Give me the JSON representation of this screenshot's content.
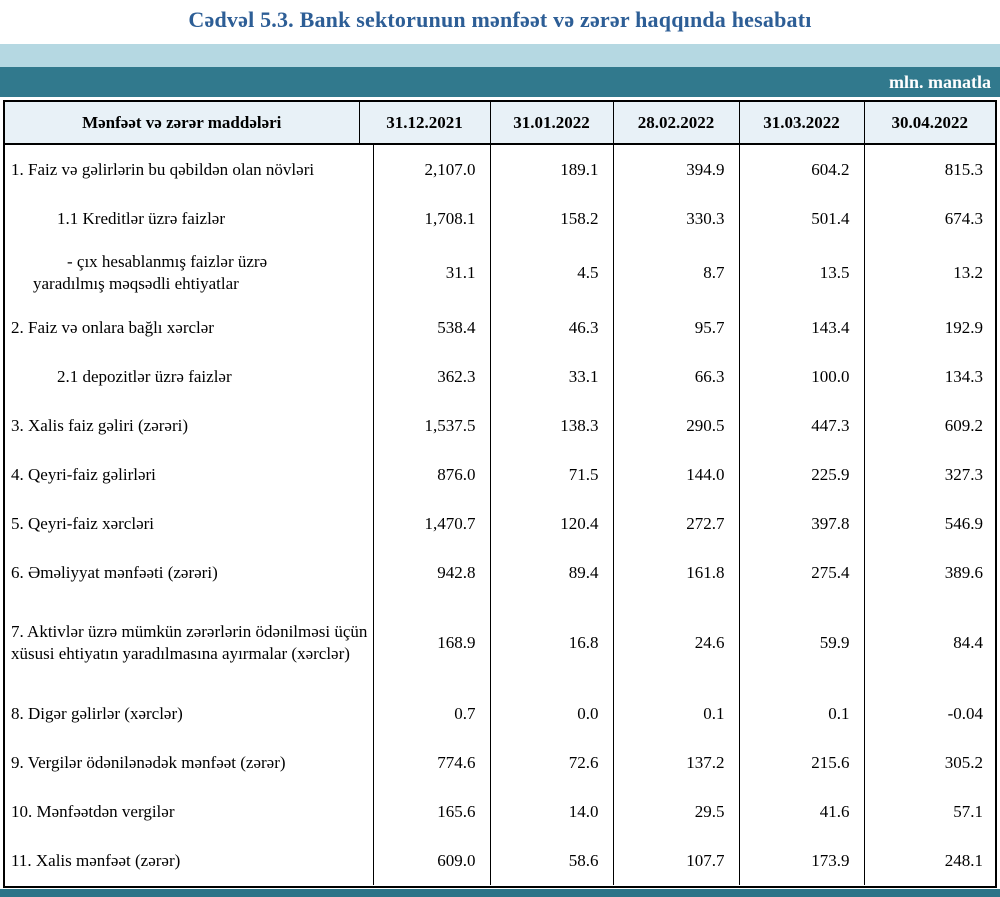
{
  "title": "Cədvəl 5.3. Bank sektorunun mənfəət və zərər haqqında hesabatı",
  "unit_label": "mln. manatla",
  "colors": {
    "title_blue": "#2d5e96",
    "band_light_blue": "#b5d8e2",
    "band_teal": "#31798d",
    "header_row_bg": "#e8f1f7",
    "bottom_strip_teal": "#2c7488",
    "table_border": "#000000"
  },
  "table": {
    "label_header": "Mənfəət və zərər maddələri",
    "date_headers": [
      "31.12.2021",
      "31.01.2022",
      "28.02.2022",
      "31.03.2022",
      "30.04.2022"
    ],
    "rows": [
      {
        "label": "1. Faiz və gəlirlərin bu qəbildən olan növləri",
        "indent": 0,
        "values": [
          "2,107.0",
          "189.1",
          "394.9",
          "604.2",
          "815.3"
        ]
      },
      {
        "label": "1.1 Kreditlər üzrə faizlər",
        "indent": 1,
        "values": [
          "1,708.1",
          "158.2",
          "330.3",
          "501.4",
          "674.3"
        ]
      },
      {
        "label": "- çıx hesablanmış faizlər üzrə yaradılmış məqsədli ehtiyatlar",
        "indent": 2,
        "values": [
          "31.1",
          "4.5",
          "8.7",
          "13.5",
          "13.2"
        ]
      },
      {
        "label": "2. Faiz və onlara bağlı xərclər",
        "indent": 0,
        "values": [
          "538.4",
          "46.3",
          "95.7",
          "143.4",
          "192.9"
        ]
      },
      {
        "label": "2.1 depozitlər üzrə faizlər",
        "indent": 1,
        "values": [
          "362.3",
          "33.1",
          "66.3",
          "100.0",
          "134.3"
        ]
      },
      {
        "label": "3. Xalis faiz gəliri (zərəri)",
        "indent": 0,
        "values": [
          "1,537.5",
          "138.3",
          "290.5",
          "447.3",
          "609.2"
        ]
      },
      {
        "label": "4. Qeyri-faiz gəlirləri",
        "indent": 0,
        "values": [
          "876.0",
          "71.5",
          "144.0",
          "225.9",
          "327.3"
        ]
      },
      {
        "label": "5. Qeyri-faiz xərcləri",
        "indent": 0,
        "values": [
          "1,470.7",
          "120.4",
          "272.7",
          "397.8",
          "546.9"
        ]
      },
      {
        "label": "6. Əməliyyat mənfəəti (zərəri)",
        "indent": 0,
        "values": [
          "942.8",
          "89.4",
          "161.8",
          "275.4",
          "389.6"
        ]
      },
      {
        "label": "7. Aktivlər üzrə mümkün zərərlərin ödənilməsi üçün xüsusi ehtiyatın yaradılmasına ayırmalar (xərclər)",
        "indent": 0,
        "values": [
          "168.9",
          "16.8",
          "24.6",
          "59.9",
          "84.4"
        ]
      },
      {
        "label": "8. Digər gəlirlər (xərclər)",
        "indent": 0,
        "values": [
          "0.7",
          "0.0",
          "0.1",
          "0.1",
          "-0.04"
        ]
      },
      {
        "label": "9. Vergilər ödənilənədək mənfəət (zərər)",
        "indent": 0,
        "values": [
          "774.6",
          "72.6",
          "137.2",
          "215.6",
          "305.2"
        ]
      },
      {
        "label": "10. Mənfəətdən vergilər",
        "indent": 0,
        "values": [
          "165.6",
          "14.0",
          "29.5",
          "41.6",
          "57.1"
        ]
      },
      {
        "label": "11. Xalis mənfəət (zərər)",
        "indent": 0,
        "values": [
          "609.0",
          "58.6",
          "107.7",
          "173.9",
          "248.1"
        ]
      }
    ]
  }
}
